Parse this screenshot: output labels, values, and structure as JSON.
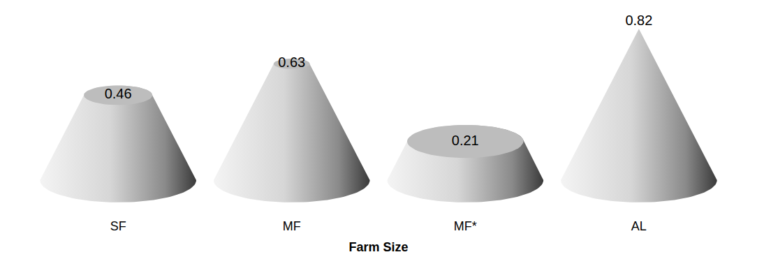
{
  "chart_data": {
    "type": "cone",
    "x_label": "Farm Size",
    "categories": [
      "SF",
      "MF",
      "MF*",
      "AL"
    ],
    "values": [
      0.46,
      0.63,
      0.21,
      0.82
    ],
    "color": "#bdbdbd",
    "ylim": [
      -0.2,
      0.9
    ],
    "data_labels": true,
    "tick_labels": "x",
    "grid": false
  }
}
